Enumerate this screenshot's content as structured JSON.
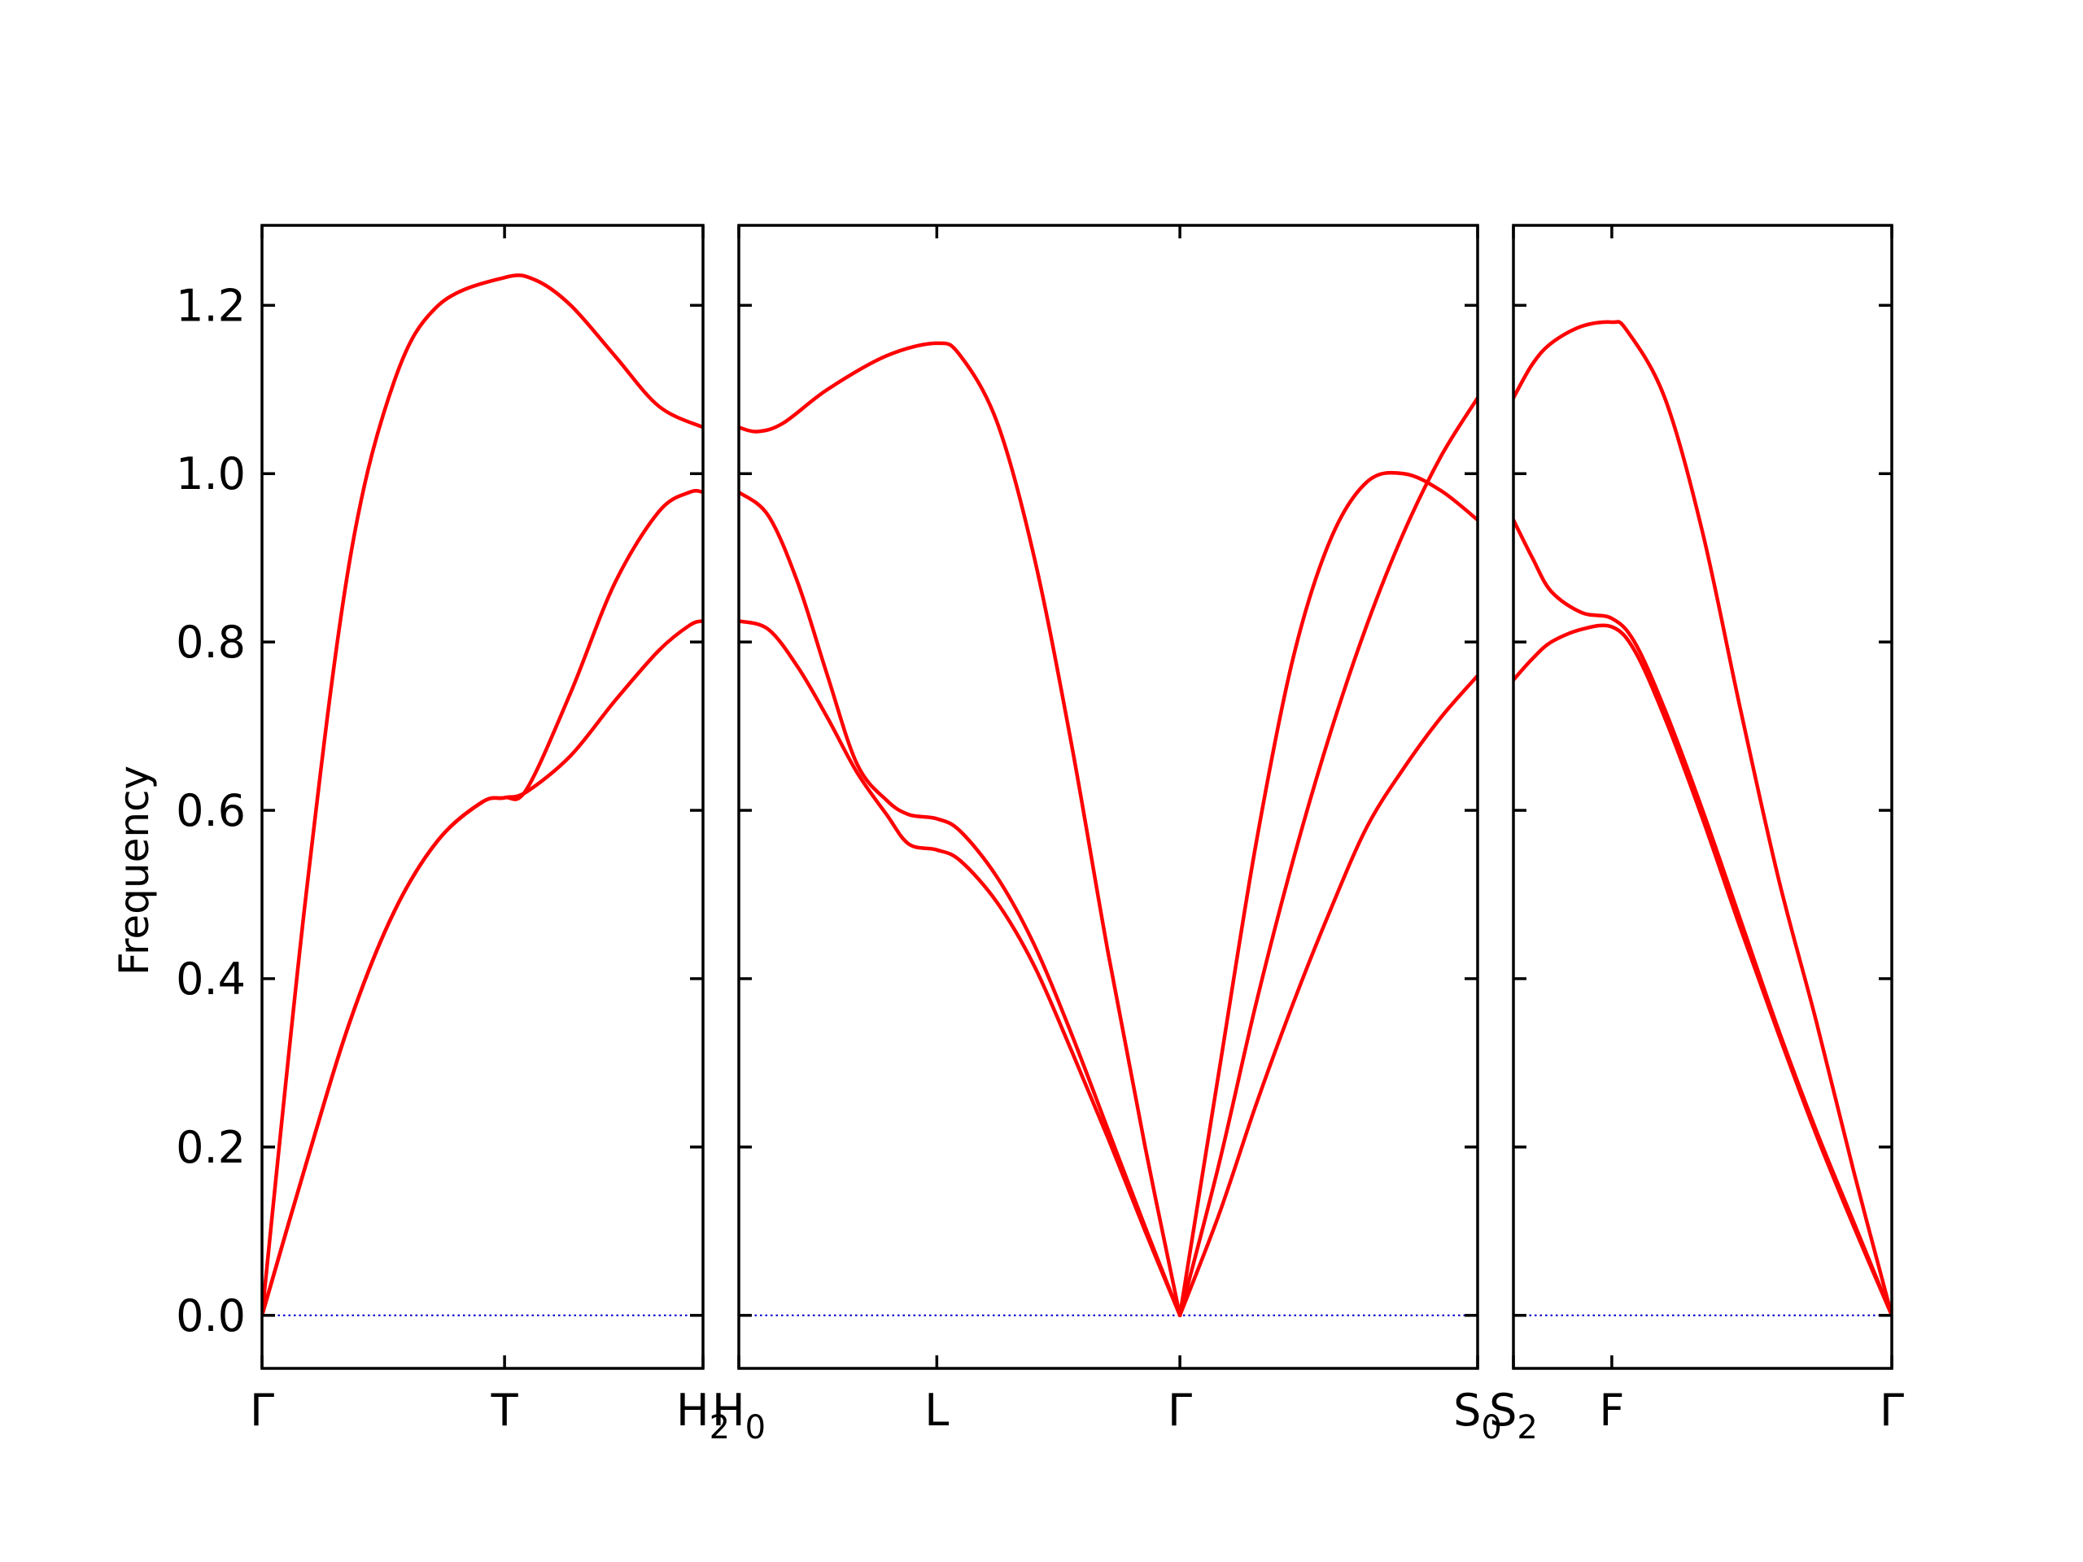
{
  "colors": {
    "band": "#ff0000",
    "zero_line": "#0000cc",
    "frame": "#000000"
  },
  "chart_data": {
    "type": "line",
    "title": "",
    "ylabel": "Frequency",
    "ylim": [
      -0.063,
      1.295
    ],
    "yticks": [
      {
        "value": 0.0,
        "label": "0.0"
      },
      {
        "value": 0.2,
        "label": "0.2"
      },
      {
        "value": 0.4,
        "label": "0.4"
      },
      {
        "value": 0.6,
        "label": "0.6"
      },
      {
        "value": 0.8,
        "label": "0.8"
      },
      {
        "value": 1.0,
        "label": "1.0"
      },
      {
        "value": 1.2,
        "label": "1.2"
      }
    ],
    "zero_line": true,
    "panels": [
      {
        "path_length": 1.0,
        "high_symmetry_points": [
          {
            "pos": 0.0,
            "label": "Γ",
            "subscript": ""
          },
          {
            "pos": 0.55,
            "label": "T",
            "subscript": ""
          },
          {
            "pos": 1.0,
            "label": "H",
            "subscript": "2"
          }
        ],
        "series": [
          {
            "points": [
              [
                0,
                0
              ],
              [
                0.1,
                0.5
              ],
              [
                0.2,
                0.9
              ],
              [
                0.3,
                1.11
              ],
              [
                0.4,
                1.2
              ],
              [
                0.55,
                1.233
              ],
              [
                0.62,
                1.23
              ],
              [
                0.7,
                1.2
              ],
              [
                0.8,
                1.14
              ],
              [
                0.9,
                1.08
              ],
              [
                1.0,
                1.055
              ]
            ]
          },
          {
            "points": [
              [
                0,
                0
              ],
              [
                0.1,
                0.18
              ],
              [
                0.2,
                0.35
              ],
              [
                0.3,
                0.48
              ],
              [
                0.4,
                0.565
              ],
              [
                0.5,
                0.61
              ],
              [
                0.55,
                0.615
              ],
              [
                0.6,
                0.625
              ],
              [
                0.7,
                0.74
              ],
              [
                0.8,
                0.87
              ],
              [
                0.9,
                0.955
              ],
              [
                0.97,
                0.978
              ],
              [
                1.0,
                0.978
              ]
            ]
          },
          {
            "points": [
              [
                0,
                0
              ],
              [
                0.1,
                0.18
              ],
              [
                0.2,
                0.35
              ],
              [
                0.3,
                0.48
              ],
              [
                0.4,
                0.565
              ],
              [
                0.5,
                0.61
              ],
              [
                0.55,
                0.615
              ],
              [
                0.6,
                0.622
              ],
              [
                0.7,
                0.665
              ],
              [
                0.8,
                0.73
              ],
              [
                0.9,
                0.79
              ],
              [
                0.97,
                0.82
              ],
              [
                1.0,
                0.825
              ]
            ]
          }
        ]
      },
      {
        "path_length": 1.0,
        "high_symmetry_points": [
          {
            "pos": 0.0,
            "label": "H",
            "subscript": "0"
          },
          {
            "pos": 0.268,
            "label": "L",
            "subscript": ""
          },
          {
            "pos": 0.597,
            "label": "Γ",
            "subscript": ""
          },
          {
            "pos": 1.0,
            "label": "S",
            "subscript": "0"
          }
        ],
        "series": [
          {
            "points": [
              [
                0,
                1.055
              ],
              [
                0.025,
                1.05
              ],
              [
                0.06,
                1.06
              ],
              [
                0.12,
                1.1
              ],
              [
                0.2,
                1.14
              ],
              [
                0.268,
                1.155
              ],
              [
                0.3,
                1.14
              ],
              [
                0.35,
                1.06
              ],
              [
                0.4,
                0.9
              ],
              [
                0.45,
                0.68
              ],
              [
                0.5,
                0.43
              ],
              [
                0.55,
                0.2
              ],
              [
                0.597,
                0.0
              ]
            ]
          },
          {
            "points": [
              [
                0,
                0.978
              ],
              [
                0.04,
                0.95
              ],
              [
                0.08,
                0.87
              ],
              [
                0.12,
                0.76
              ],
              [
                0.16,
                0.655
              ],
              [
                0.2,
                0.612
              ],
              [
                0.23,
                0.595
              ],
              [
                0.268,
                0.59
              ],
              [
                0.3,
                0.575
              ],
              [
                0.35,
                0.52
              ],
              [
                0.4,
                0.44
              ],
              [
                0.45,
                0.335
              ],
              [
                0.5,
                0.22
              ],
              [
                0.55,
                0.105
              ],
              [
                0.597,
                0.0
              ]
            ]
          },
          {
            "points": [
              [
                0,
                0.825
              ],
              [
                0.04,
                0.815
              ],
              [
                0.08,
                0.77
              ],
              [
                0.12,
                0.71
              ],
              [
                0.16,
                0.645
              ],
              [
                0.2,
                0.595
              ],
              [
                0.23,
                0.56
              ],
              [
                0.268,
                0.553
              ],
              [
                0.3,
                0.54
              ],
              [
                0.35,
                0.49
              ],
              [
                0.4,
                0.415
              ],
              [
                0.45,
                0.315
              ],
              [
                0.5,
                0.21
              ],
              [
                0.55,
                0.1
              ],
              [
                0.597,
                0.0
              ]
            ]
          },
          {
            "points": [
              [
                0.597,
                0.0
              ],
              [
                0.65,
                0.29
              ],
              [
                0.7,
                0.56
              ],
              [
                0.75,
                0.78
              ],
              [
                0.8,
                0.92
              ],
              [
                0.85,
                0.99
              ],
              [
                0.9,
                1.0
              ],
              [
                0.95,
                0.98
              ],
              [
                1.0,
                0.945
              ]
            ]
          },
          {
            "points": [
              [
                0.597,
                0.0
              ],
              [
                0.65,
                0.18
              ],
              [
                0.7,
                0.37
              ],
              [
                0.75,
                0.54
              ],
              [
                0.8,
                0.69
              ],
              [
                0.85,
                0.82
              ],
              [
                0.9,
                0.93
              ],
              [
                0.95,
                1.02
              ],
              [
                1.0,
                1.09
              ]
            ]
          },
          {
            "points": [
              [
                0.597,
                0.0
              ],
              [
                0.65,
                0.12
              ],
              [
                0.7,
                0.25
              ],
              [
                0.75,
                0.37
              ],
              [
                0.8,
                0.48
              ],
              [
                0.85,
                0.58
              ],
              [
                0.9,
                0.65
              ],
              [
                0.95,
                0.71
              ],
              [
                1.0,
                0.76
              ]
            ]
          }
        ]
      },
      {
        "path_length": 1.0,
        "high_symmetry_points": [
          {
            "pos": 0.0,
            "label": "S",
            "subscript": "2"
          },
          {
            "pos": 0.26,
            "label": "F",
            "subscript": ""
          },
          {
            "pos": 1.0,
            "label": "Γ",
            "subscript": ""
          }
        ],
        "series": [
          {
            "points": [
              [
                0,
                1.09
              ],
              [
                0.05,
                1.13
              ],
              [
                0.1,
                1.155
              ],
              [
                0.18,
                1.175
              ],
              [
                0.26,
                1.18
              ],
              [
                0.3,
                1.17
              ],
              [
                0.4,
                1.09
              ],
              [
                0.5,
                0.93
              ],
              [
                0.6,
                0.72
              ],
              [
                0.7,
                0.52
              ],
              [
                0.8,
                0.35
              ],
              [
                0.9,
                0.17
              ],
              [
                1.0,
                0.0
              ]
            ]
          },
          {
            "points": [
              [
                0,
                0.945
              ],
              [
                0.05,
                0.9
              ],
              [
                0.1,
                0.86
              ],
              [
                0.18,
                0.835
              ],
              [
                0.26,
                0.828
              ],
              [
                0.32,
                0.8
              ],
              [
                0.4,
                0.72
              ],
              [
                0.5,
                0.6
              ],
              [
                0.6,
                0.47
              ],
              [
                0.7,
                0.34
              ],
              [
                0.8,
                0.22
              ],
              [
                0.9,
                0.11
              ],
              [
                1.0,
                0.0
              ]
            ]
          },
          {
            "points": [
              [
                0,
                0.755
              ],
              [
                0.05,
                0.78
              ],
              [
                0.1,
                0.8
              ],
              [
                0.18,
                0.815
              ],
              [
                0.26,
                0.818
              ],
              [
                0.32,
                0.79
              ],
              [
                0.4,
                0.71
              ],
              [
                0.5,
                0.59
              ],
              [
                0.6,
                0.46
              ],
              [
                0.7,
                0.335
              ],
              [
                0.8,
                0.215
              ],
              [
                0.9,
                0.105
              ],
              [
                1.0,
                0.0
              ]
            ]
          }
        ]
      }
    ]
  }
}
